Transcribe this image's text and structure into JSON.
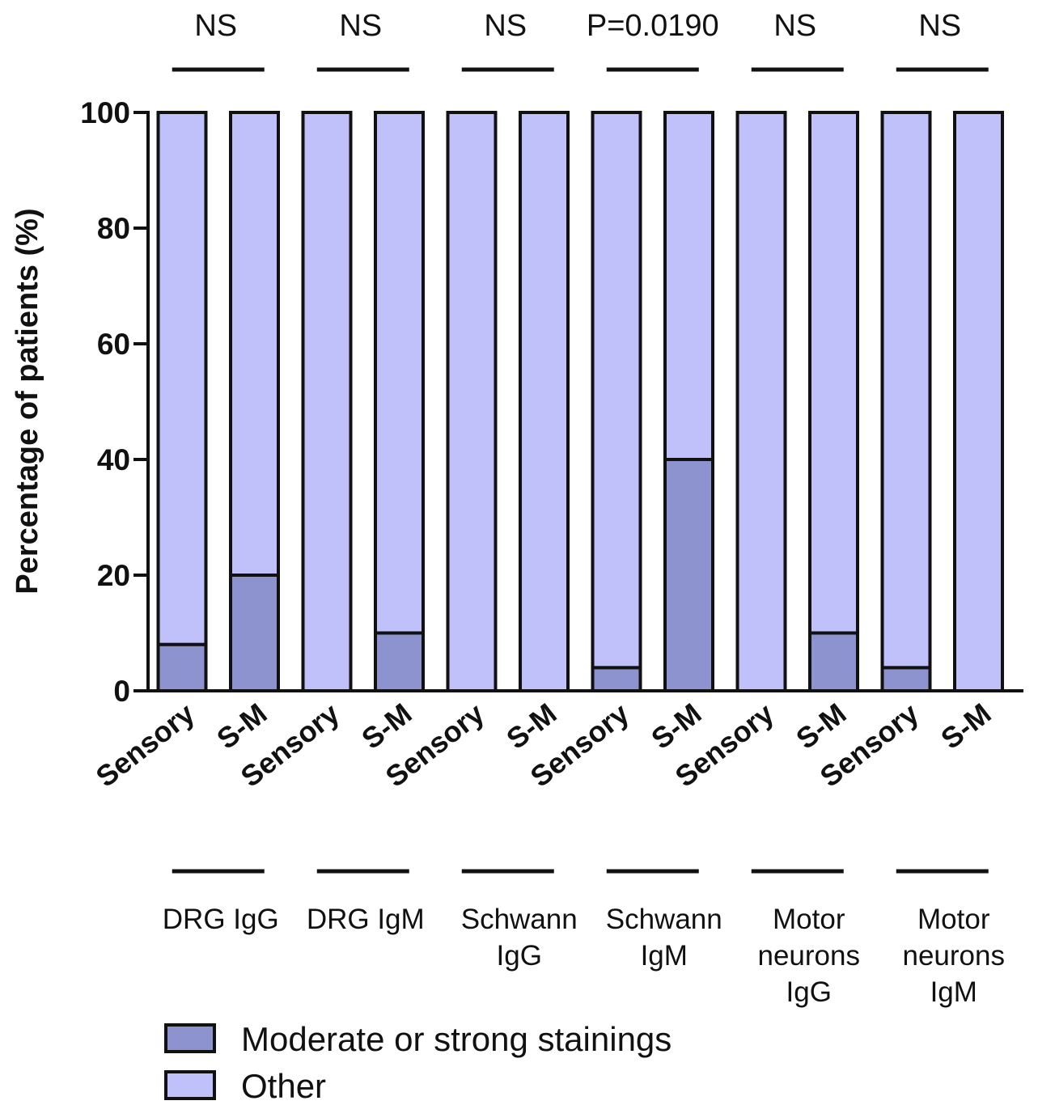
{
  "chart_data": {
    "type": "bar",
    "stacked": true,
    "ylabel": "Percentage of patients (%)",
    "xlabel": "",
    "ylim": [
      0,
      100
    ],
    "yticks": [
      0,
      20,
      40,
      60,
      80,
      100
    ],
    "categories": [
      "Sensory",
      "S-M",
      "Sensory",
      "S-M",
      "Sensory",
      "S-M",
      "Sensory",
      "S-M",
      "Sensory",
      "S-M",
      "Sensory",
      "S-M"
    ],
    "groups": [
      {
        "label": [
          "DRG IgG"
        ],
        "significance": "NS"
      },
      {
        "label": [
          "DRG IgM"
        ],
        "significance": "NS"
      },
      {
        "label": [
          "Schwann",
          "IgG"
        ],
        "significance": "NS"
      },
      {
        "label": [
          "Schwann",
          "IgM"
        ],
        "significance": "P=0.0190"
      },
      {
        "label": [
          "Motor",
          "neurons",
          "IgG"
        ],
        "significance": "NS"
      },
      {
        "label": [
          "Motor",
          "neurons",
          "IgM"
        ],
        "significance": "NS"
      }
    ],
    "series": [
      {
        "name": "Moderate or strong stainings",
        "color": "#8c93cf",
        "values": [
          8,
          20,
          0,
          10,
          0,
          0,
          4,
          40,
          0,
          10,
          4,
          0
        ]
      },
      {
        "name": "Other",
        "color": "#c0c0fb",
        "values": [
          92,
          80,
          100,
          90,
          100,
          100,
          96,
          60,
          100,
          90,
          96,
          100
        ]
      }
    ],
    "legend": {
      "position": "bottom-left"
    },
    "grid": false
  }
}
